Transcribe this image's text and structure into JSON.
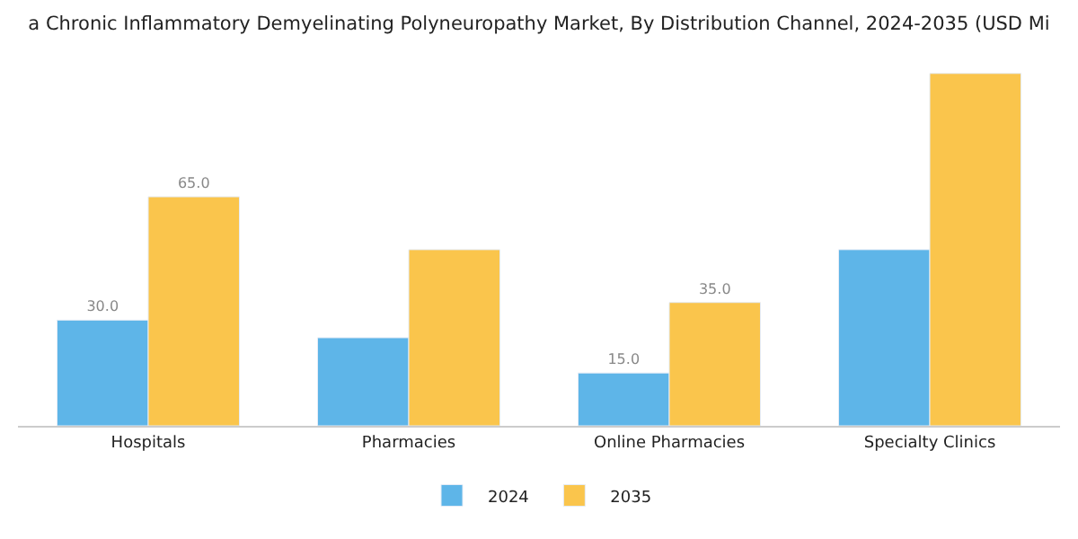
{
  "chart_data": {
    "type": "bar",
    "title": "a Chronic Inflammatory Demyelinating Polyneuropathy Market, By Distribution Channel, 2024-2035 (USD Mi",
    "categories": [
      "Hospitals",
      "Pharmacies",
      "Online Pharmacies",
      "Specialty Clinics"
    ],
    "series": [
      {
        "name": "2024",
        "color": "#5eb5e8",
        "values": [
          30,
          25,
          15,
          50
        ],
        "value_labels": [
          "30.0",
          null,
          "15.0",
          null
        ]
      },
      {
        "name": "2035",
        "color": "#fac54c",
        "values": [
          65,
          50,
          35,
          100
        ],
        "value_labels": [
          "65.0",
          null,
          "35.0",
          null
        ]
      }
    ],
    "legend": "bottom"
  }
}
